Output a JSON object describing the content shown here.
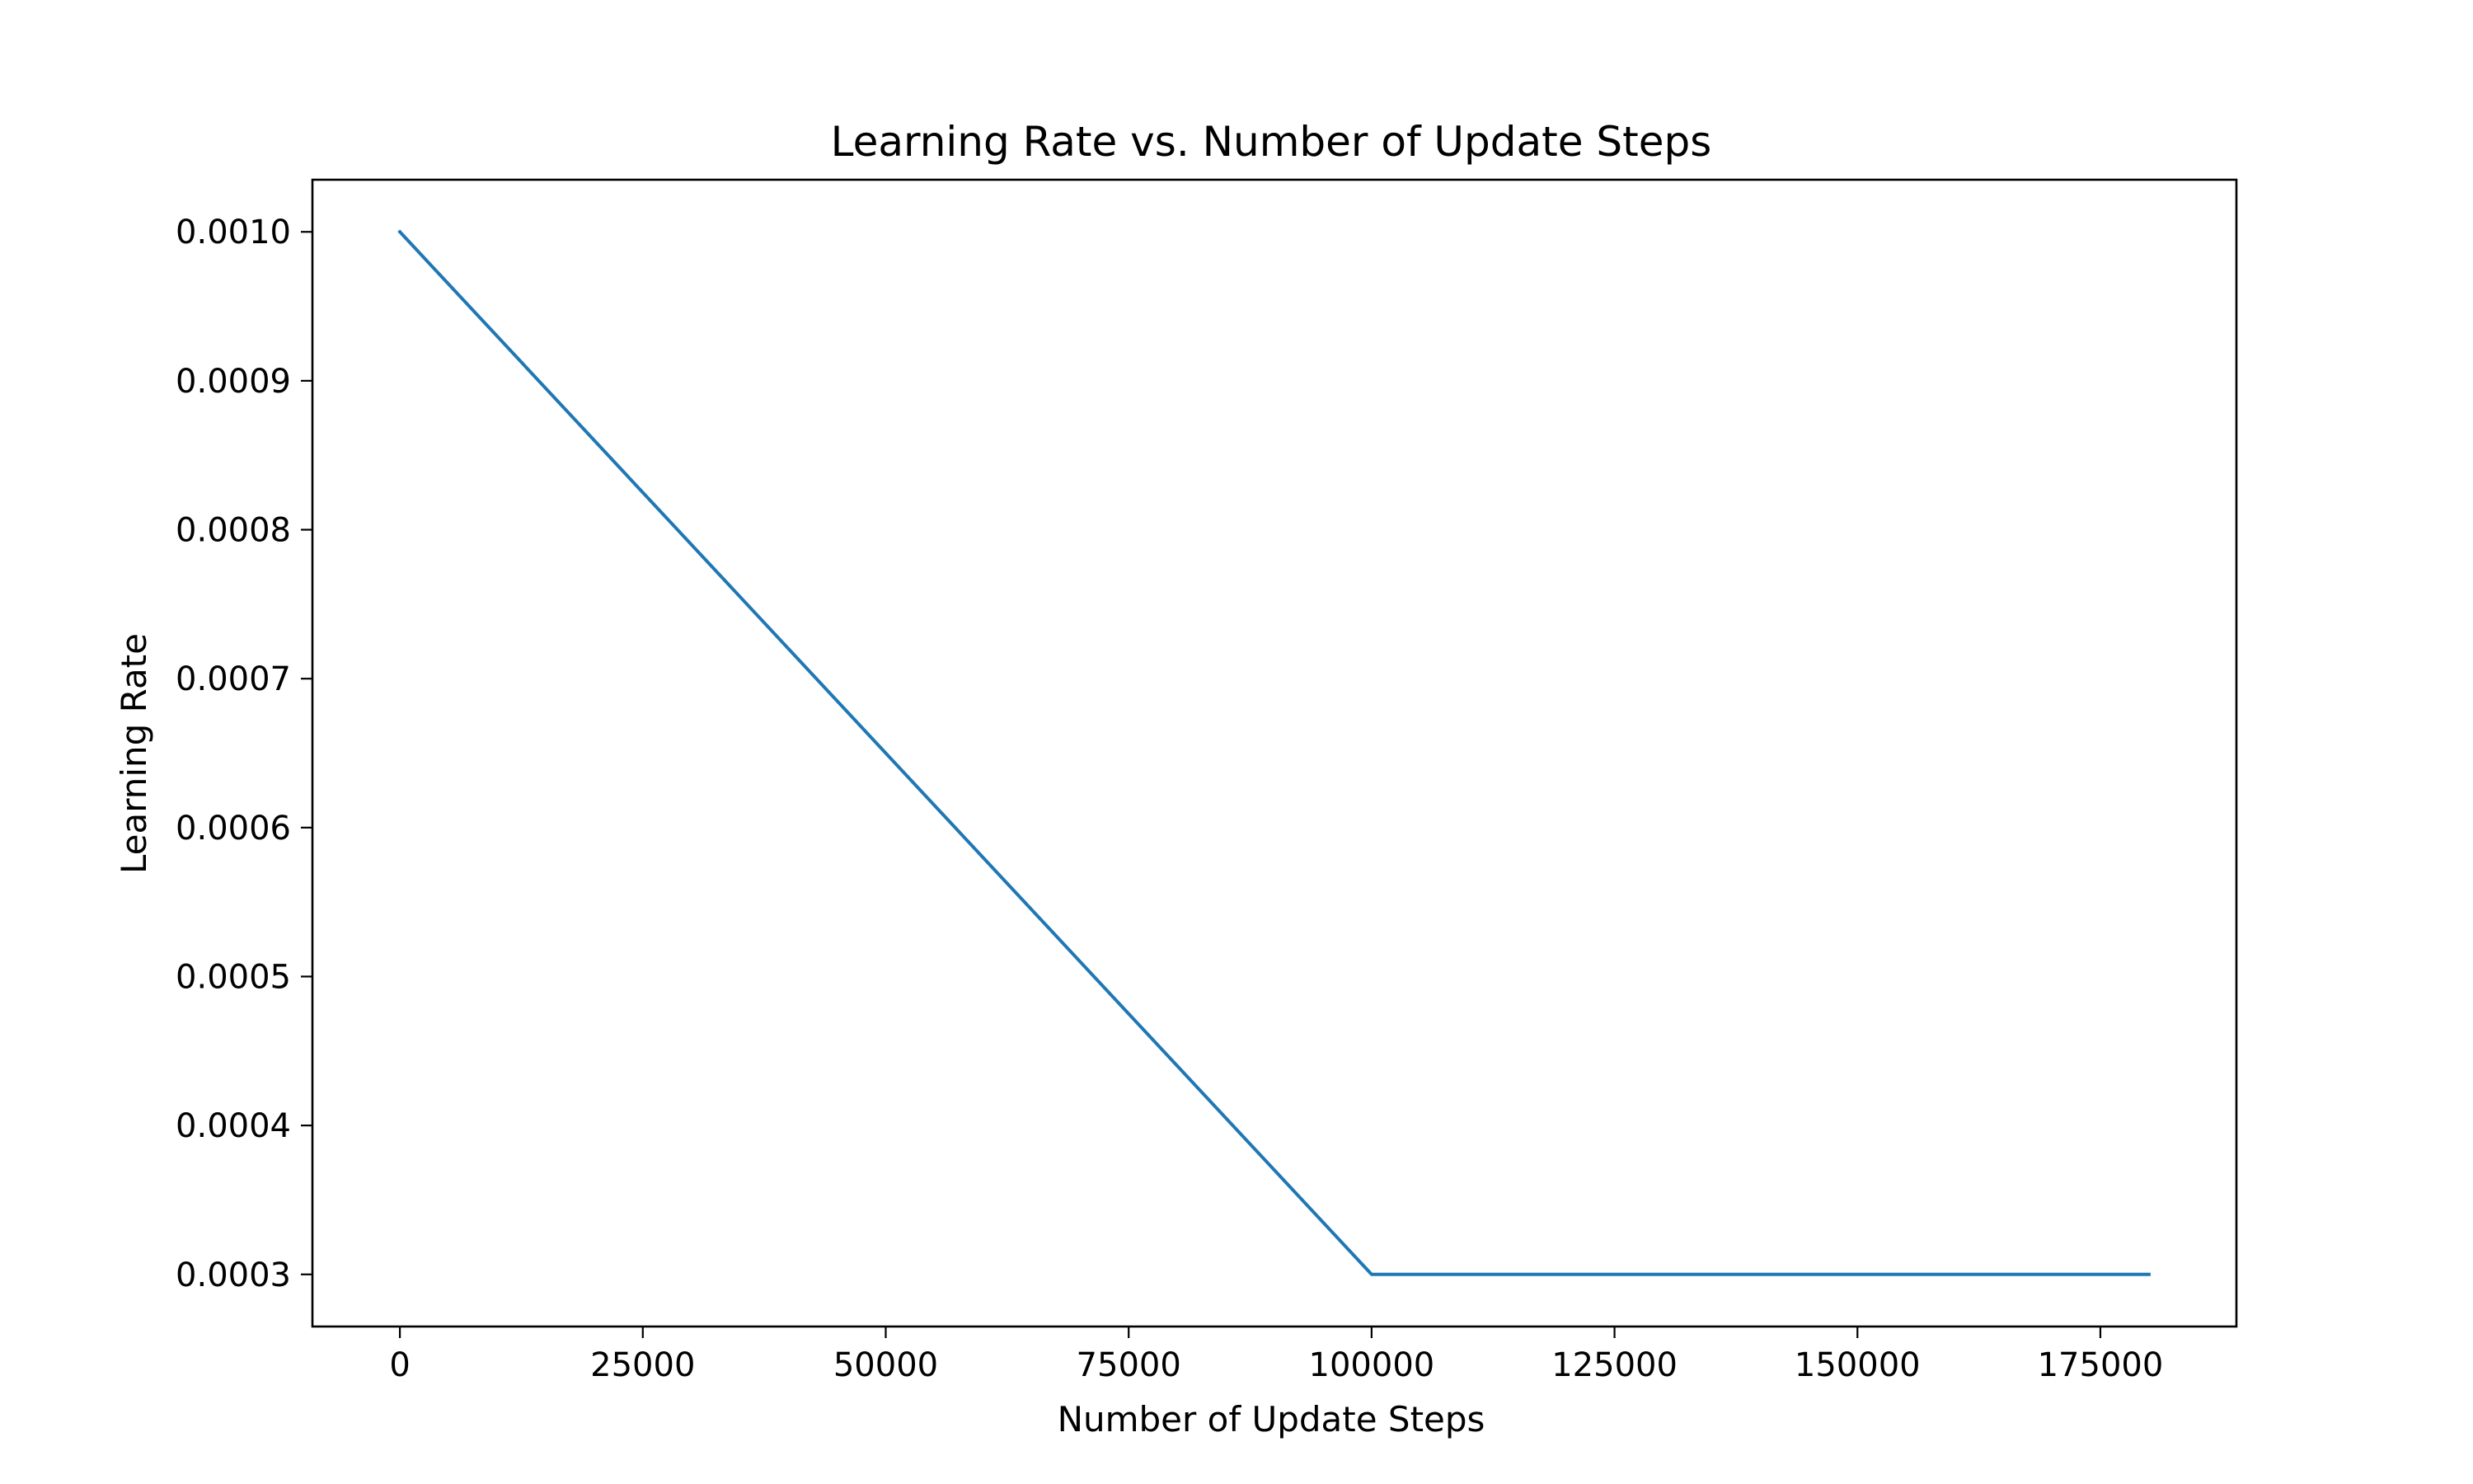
{
  "chart_data": {
    "type": "line",
    "title": "Learning Rate vs. Number of Update Steps",
    "xlabel": "Number of Update Steps",
    "ylabel": "Learning Rate",
    "xlim": [
      -9000,
      189000
    ],
    "ylim": [
      0.000265,
      0.001035
    ],
    "xticks": [
      0,
      25000,
      50000,
      75000,
      100000,
      125000,
      150000,
      175000
    ],
    "xtick_labels": [
      "0",
      "25000",
      "50000",
      "75000",
      "100000",
      "125000",
      "150000",
      "175000"
    ],
    "yticks": [
      0.0003,
      0.0004,
      0.0005,
      0.0006,
      0.0007,
      0.0008,
      0.0009,
      0.001
    ],
    "ytick_labels": [
      "0.0003",
      "0.0004",
      "0.0005",
      "0.0006",
      "0.0007",
      "0.0008",
      "0.0009",
      "0.0010"
    ],
    "grid": false,
    "legend": false,
    "series": [
      {
        "color": "#1f77b4",
        "x": [
          0,
          100000,
          180000
        ],
        "y": [
          0.001,
          0.0003,
          0.0003
        ]
      }
    ]
  }
}
